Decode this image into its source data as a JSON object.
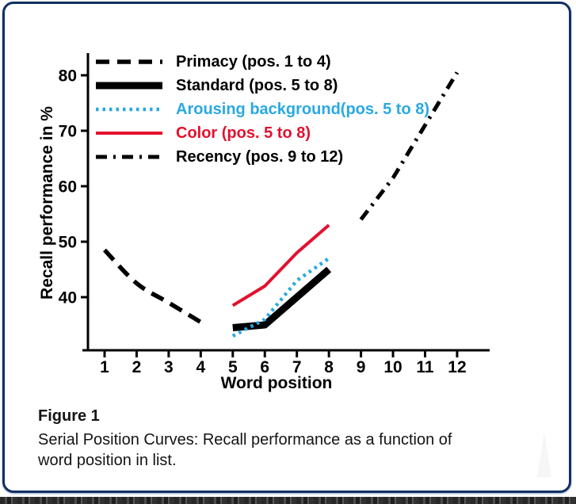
{
  "frame": {
    "border_color": "#113063"
  },
  "chart_data": {
    "type": "line",
    "title": "",
    "xlabel": "Word position",
    "ylabel": "Recall performance in %",
    "x_ticks": [
      "1",
      "2",
      "3",
      "4",
      "5",
      "6",
      "7",
      "8",
      "9",
      "10",
      "11",
      "12"
    ],
    "y_ticks": [
      "40",
      "50",
      "60",
      "70",
      "80"
    ],
    "xlim": [
      1,
      12
    ],
    "ylim": [
      40,
      80
    ],
    "grid": false,
    "legend_position": "top-left",
    "series": [
      {
        "name": "Primacy (pos. 1 to 4)",
        "color": "#000000",
        "line_style": "dashed",
        "x": [
          1,
          2,
          3,
          4
        ],
        "y": [
          48.5,
          42.5,
          39,
          35.5
        ]
      },
      {
        "name": "Standard (pos. 5 to 8)",
        "color": "#000000",
        "line_style": "solid-thick",
        "x": [
          5,
          6,
          7,
          8
        ],
        "y": [
          34.5,
          35,
          40,
          45
        ]
      },
      {
        "name": "Arousing background(pos. 5 to 8)",
        "color": "#29a9e1",
        "line_style": "dotted",
        "x": [
          5,
          6,
          7,
          8
        ],
        "y": [
          33,
          36,
          43,
          47
        ]
      },
      {
        "name": "Color (pos. 5 to 8)",
        "color": "#e3112e",
        "line_style": "solid",
        "x": [
          5,
          6,
          7,
          8
        ],
        "y": [
          38.5,
          42,
          48,
          53
        ]
      },
      {
        "name": "Recency (pos. 9 to 12)",
        "color": "#000000",
        "line_style": "dashdot",
        "x": [
          9,
          10,
          11,
          12
        ],
        "y": [
          54,
          61.5,
          71,
          80.5
        ]
      }
    ]
  },
  "caption": {
    "figure_label": "Figure 1",
    "text_line1": "Serial Position Curves: Recall performance as a function of",
    "text_line2": "word position in list."
  }
}
